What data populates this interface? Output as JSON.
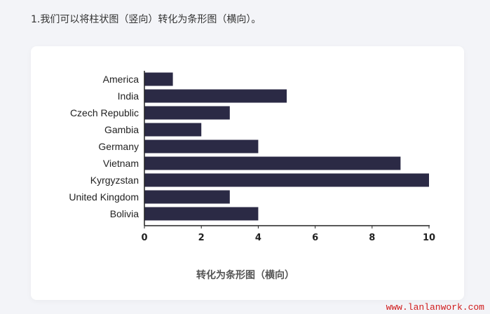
{
  "intro_text": "1.我们可以将柱状图（竖向）转化为条形图（横向）。",
  "watermark": "www.lanlanwork.com",
  "colors": {
    "bar": "#2b2a45",
    "background": "#f3f4f8",
    "card": "#ffffff",
    "watermark": "#d01c1c"
  },
  "chart_data": {
    "type": "bar",
    "orientation": "horizontal",
    "categories": [
      "America",
      "India",
      "Czech Republic",
      "Gambia",
      "Germany",
      "Vietnam",
      "Kyrgyzstan",
      "United Kingdom",
      "Bolivia"
    ],
    "values": [
      1,
      5,
      3,
      2,
      4,
      9,
      10,
      3,
      4
    ],
    "xlim": [
      0,
      10
    ],
    "xticks": [
      "0",
      "2",
      "4",
      "6",
      "8",
      "10"
    ],
    "caption": "转化为条形图（横向）",
    "grid": false
  }
}
